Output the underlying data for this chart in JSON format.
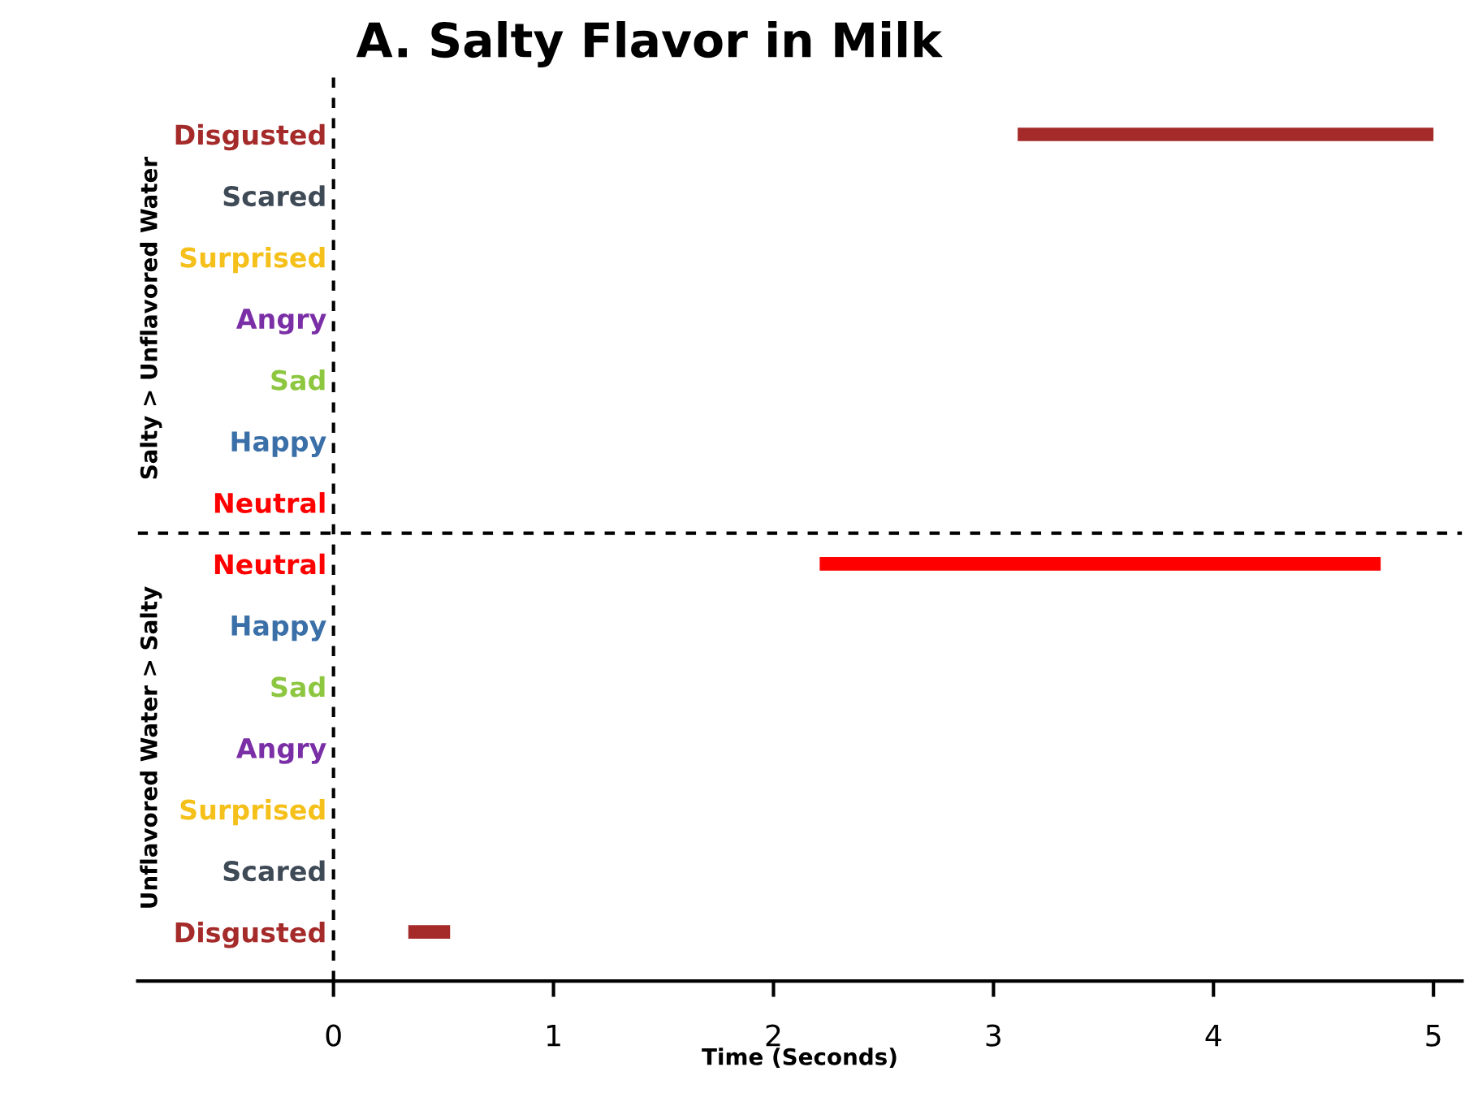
{
  "chart_data": {
    "type": "bar",
    "orientation": "horizontal",
    "title": "A. Salty Flavor in Milk",
    "xlabel": "Time (Seconds)",
    "categories": [
      "Disgusted",
      "Scared",
      "Surprised",
      "Angry",
      "Sad",
      "Happy",
      "Neutral",
      "Neutral",
      "Happy",
      "Sad",
      "Angry",
      "Surprised",
      "Scared",
      "Disgusted"
    ],
    "base": [
      3.11,
      null,
      null,
      null,
      null,
      null,
      null,
      2.21,
      null,
      null,
      null,
      null,
      null,
      0.34
    ],
    "values": [
      1.89,
      null,
      null,
      null,
      null,
      null,
      null,
      2.55,
      null,
      null,
      null,
      null,
      null,
      0.19
    ],
    "colors": [
      "#a52a2a",
      "#3f4a57",
      "#f5c01a",
      "#7b2fa6",
      "#8dc63f",
      "#3a6fa8",
      "#ff0000",
      "#ff0000",
      "#3a6fa8",
      "#8dc63f",
      "#7b2fa6",
      "#f5c01a",
      "#3f4a57",
      "#a52a2a"
    ],
    "xlim": [
      -0.89,
      5.13
    ],
    "xticks": [
      0,
      1,
      2,
      3,
      4,
      5
    ],
    "ref_lines": [
      {
        "axis": "x",
        "value": 0,
        "line_style": "dashed",
        "color": "#000000"
      }
    ],
    "annotations": [
      "Salty > Unflavored Water",
      "Unflavored Water > Salty"
    ],
    "grid": false,
    "legend": false
  }
}
